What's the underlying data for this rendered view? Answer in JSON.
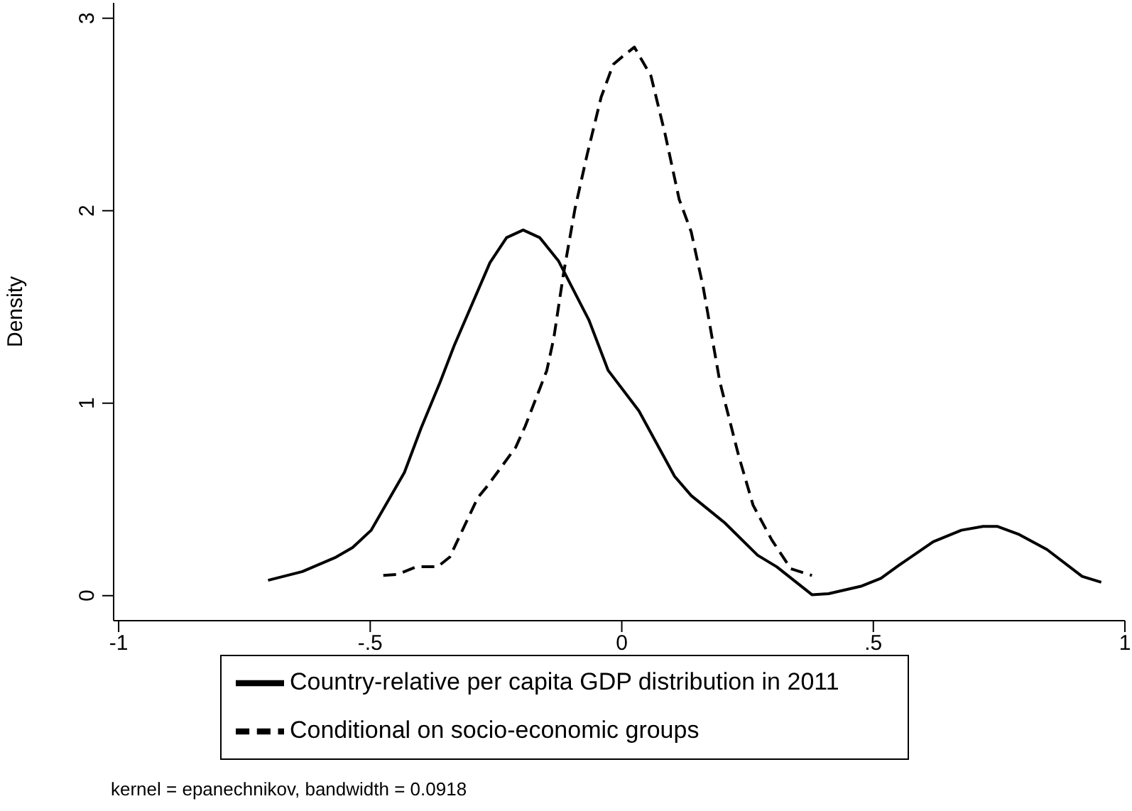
{
  "chart_data": {
    "type": "line",
    "ylabel": "Density",
    "xlim": [
      -1.01,
      1.0
    ],
    "xticks": [
      -1,
      {
        "value": -0.5,
        "label": "-.5"
      },
      0,
      {
        "value": 0.5,
        "label": ".5"
      },
      1
    ],
    "ylim": [
      -0.13,
      3.08
    ],
    "yticks": [
      0,
      1,
      2,
      3
    ],
    "grid": false,
    "legend": "bottom",
    "marker": "none",
    "annotations": [
      "kernel = epanechnikov, bandwidth = 0.0918"
    ],
    "series": [
      {
        "name": "Country-relative per capita GDP distribution in 2011",
        "color": "#000000",
        "line_style": "solid",
        "x": [
          -0.703,
          -0.635,
          -0.568,
          -0.535,
          -0.498,
          -0.432,
          -0.399,
          -0.361,
          -0.333,
          -0.262,
          -0.229,
          -0.196,
          -0.163,
          -0.126,
          -0.065,
          -0.027,
          0.034,
          0.105,
          0.138,
          0.204,
          0.27,
          0.308,
          0.378,
          0.411,
          0.477,
          0.515,
          0.552,
          0.619,
          0.675,
          0.718,
          0.746,
          0.788,
          0.845,
          0.915,
          0.953
        ],
        "values": [
          0.08,
          0.125,
          0.2,
          0.25,
          0.34,
          0.64,
          0.87,
          1.11,
          1.3,
          1.73,
          1.86,
          1.9,
          1.86,
          1.74,
          1.43,
          1.17,
          0.96,
          0.62,
          0.52,
          0.38,
          0.21,
          0.15,
          0.005,
          0.01,
          0.05,
          0.09,
          0.16,
          0.28,
          0.34,
          0.36,
          0.36,
          0.32,
          0.24,
          0.1,
          0.07
        ]
      },
      {
        "name": "Conditional on socio-economic groups",
        "color": "#000000",
        "line_style": "dashed",
        "x": [
          -0.474,
          -0.446,
          -0.408,
          -0.366,
          -0.342,
          -0.286,
          -0.267,
          -0.211,
          -0.192,
          -0.149,
          -0.135,
          -0.116,
          -0.093,
          -0.069,
          -0.041,
          -0.017,
          0.001,
          0.025,
          0.058,
          0.086,
          0.114,
          0.138,
          0.162,
          0.195,
          0.232,
          0.261,
          0.298,
          0.336,
          0.378
        ],
        "values": [
          0.105,
          0.11,
          0.15,
          0.15,
          0.2,
          0.51,
          0.57,
          0.77,
          0.88,
          1.17,
          1.34,
          1.67,
          2.01,
          2.29,
          2.59,
          2.76,
          2.8,
          2.85,
          2.7,
          2.4,
          2.06,
          1.89,
          1.6,
          1.11,
          0.73,
          0.47,
          0.29,
          0.14,
          0.105
        ]
      }
    ]
  }
}
